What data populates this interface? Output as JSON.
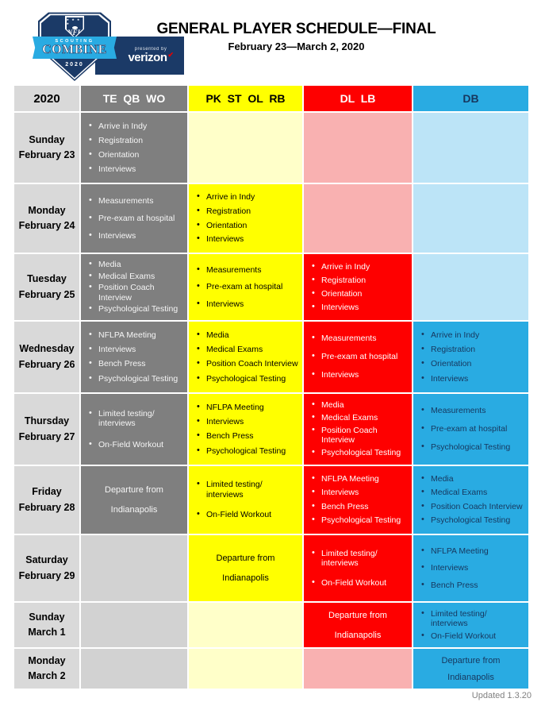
{
  "header": {
    "logo": {
      "nfl": "NFL",
      "stars_row": "★ ★   ★ ★",
      "scouting": "SCOUTING",
      "combine": "COMBINE",
      "year": "2020",
      "presented_by": "presented by",
      "sponsor": "verizon"
    },
    "title": "GENERAL PLAYER SCHEDULE—FINAL",
    "subtitle": "February 23—March 2, 2020"
  },
  "colors": {
    "navy": "#1b3a67",
    "bright_blue": "#29abe2",
    "pale_blue": "#bce4f7",
    "yellow": "#ffff00",
    "pale_yellow": "#ffffc9",
    "red": "#fe0000",
    "pale_red": "#f9b1b1",
    "gray": "#7f7f7f",
    "pale_gray": "#d2d2d2",
    "date_gray": "#d9d9d9",
    "verizon_red": "#e60000",
    "blue_text": "#17375e"
  },
  "table": {
    "columns": [
      {
        "id": "date",
        "label": "2020"
      },
      {
        "id": "gray",
        "label": "TE  QB  WO"
      },
      {
        "id": "yellow",
        "label": "PK  ST  OL  RB"
      },
      {
        "id": "red",
        "label": "DL  LB"
      },
      {
        "id": "blue",
        "label": "DB"
      }
    ],
    "rows": [
      {
        "day": "Sunday",
        "date": "February 23",
        "cells": {
          "gray": {
            "type": "bullets",
            "items": [
              "Arrive in Indy",
              "Registration",
              "Orientation",
              "Interviews"
            ]
          },
          "yellow": {
            "type": "empty"
          },
          "red": {
            "type": "empty"
          },
          "blue": {
            "type": "empty"
          }
        }
      },
      {
        "day": "Monday",
        "date": "February 24",
        "cells": {
          "gray": {
            "type": "bullets",
            "items": [
              "Measurements",
              "Pre-exam at hospital",
              "Interviews"
            ]
          },
          "yellow": {
            "type": "bullets",
            "items": [
              "Arrive in Indy",
              "Registration",
              "Orientation",
              "Interviews"
            ]
          },
          "red": {
            "type": "empty"
          },
          "blue": {
            "type": "empty"
          }
        }
      },
      {
        "day": "Tuesday",
        "date": "February 25",
        "cells": {
          "gray": {
            "type": "bullets",
            "items": [
              "Media",
              "Medical Exams",
              "Position Coach Interview",
              "Psychological Testing"
            ]
          },
          "yellow": {
            "type": "bullets",
            "items": [
              "Measurements",
              "Pre-exam at hospital",
              "Interviews"
            ]
          },
          "red": {
            "type": "bullets",
            "items": [
              "Arrive in Indy",
              "Registration",
              "Orientation",
              "Interviews"
            ]
          },
          "blue": {
            "type": "empty"
          }
        }
      },
      {
        "day": "Wednesday",
        "date": "February 26",
        "cells": {
          "gray": {
            "type": "bullets",
            "items": [
              "NFLPA Meeting",
              "Interviews",
              "Bench Press",
              "Psychological Testing"
            ]
          },
          "yellow": {
            "type": "bullets",
            "items": [
              "Media",
              "Medical Exams",
              "Position Coach Interview",
              "Psychological Testing"
            ]
          },
          "red": {
            "type": "bullets",
            "items": [
              "Measurements",
              "Pre-exam at hospital",
              "Interviews"
            ]
          },
          "blue": {
            "type": "bullets",
            "items": [
              "Arrive in Indy",
              "Registration",
              "Orientation",
              "Interviews"
            ]
          }
        }
      },
      {
        "day": "Thursday",
        "date": "February 27",
        "cells": {
          "gray": {
            "type": "bullets",
            "items": [
              "Limited testing/ interviews",
              "On-Field Workout"
            ]
          },
          "yellow": {
            "type": "bullets",
            "items": [
              "NFLPA Meeting",
              "Interviews",
              "Bench Press",
              "Psychological Testing"
            ]
          },
          "red": {
            "type": "bullets",
            "items": [
              "Media",
              "Medical Exams",
              "Position Coach Interview",
              "Psychological Testing"
            ]
          },
          "blue": {
            "type": "bullets",
            "items": [
              "Measurements",
              "Pre-exam at hospital",
              "Psychological Testing"
            ]
          }
        }
      },
      {
        "day": "Friday",
        "date": "February 28",
        "cells": {
          "gray": {
            "type": "center",
            "lines": [
              "Departure from",
              "Indianapolis"
            ]
          },
          "yellow": {
            "type": "bullets",
            "items": [
              "Limited testing/ interviews",
              "On-Field Workout"
            ]
          },
          "red": {
            "type": "bullets",
            "items": [
              "NFLPA Meeting",
              "Interviews",
              "Bench Press",
              "Psychological Testing"
            ]
          },
          "blue": {
            "type": "bullets",
            "items": [
              "Media",
              "Medical Exams",
              "Position Coach Interview",
              "Psychological Testing"
            ]
          }
        }
      },
      {
        "day": "Saturday",
        "date": "February 29",
        "cells": {
          "gray": {
            "type": "empty"
          },
          "yellow": {
            "type": "center",
            "lines": [
              "Departure from",
              "Indianapolis"
            ]
          },
          "red": {
            "type": "bullets",
            "items": [
              "Limited testing/ interviews",
              "On-Field Workout"
            ]
          },
          "blue": {
            "type": "bullets",
            "items": [
              "NFLPA Meeting",
              "Interviews",
              "Bench Press"
            ]
          }
        }
      },
      {
        "day": "Sunday",
        "date": "March 1",
        "cells": {
          "gray": {
            "type": "empty"
          },
          "yellow": {
            "type": "empty"
          },
          "red": {
            "type": "center",
            "lines": [
              "Departure from",
              "Indianapolis"
            ]
          },
          "blue": {
            "type": "bullets",
            "items": [
              "Limited testing/ interviews",
              "On-Field Workout"
            ]
          }
        }
      },
      {
        "day": "Monday",
        "date": "March 2",
        "cells": {
          "gray": {
            "type": "empty"
          },
          "yellow": {
            "type": "empty"
          },
          "red": {
            "type": "empty"
          },
          "blue": {
            "type": "center",
            "lines": [
              "Departure from",
              "Indianapolis"
            ]
          }
        }
      }
    ]
  },
  "footer": {
    "updated": "Updated 1.3.20"
  }
}
